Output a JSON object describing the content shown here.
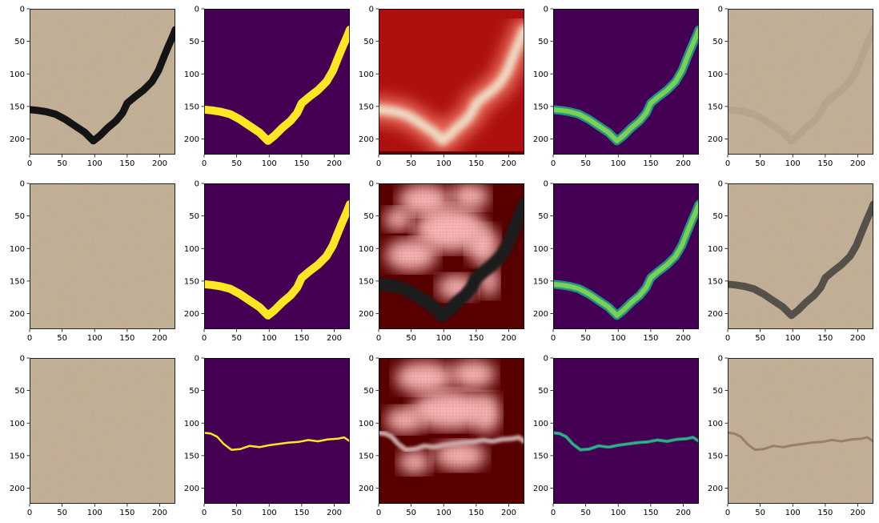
{
  "chart_data": {
    "type": "image_grid",
    "rows": 3,
    "cols": 5,
    "xticks": [
      0,
      50,
      100,
      150,
      200
    ],
    "yticks": [
      0,
      50,
      100,
      150,
      200
    ],
    "xlim": [
      0,
      224
    ],
    "ylim": [
      224,
      0
    ],
    "crack_paths": {
      "v": [
        [
          0,
          155
        ],
        [
          12,
          156
        ],
        [
          25,
          158
        ],
        [
          40,
          162
        ],
        [
          55,
          170
        ],
        [
          70,
          180
        ],
        [
          85,
          190
        ],
        [
          98,
          203
        ],
        [
          108,
          195
        ],
        [
          120,
          183
        ],
        [
          133,
          172
        ],
        [
          143,
          160
        ],
        [
          150,
          145
        ],
        [
          162,
          135
        ],
        [
          175,
          125
        ],
        [
          188,
          112
        ],
        [
          198,
          95
        ],
        [
          206,
          75
        ],
        [
          213,
          58
        ],
        [
          220,
          42
        ],
        [
          224,
          32
        ]
      ],
      "thin": [
        [
          0,
          115
        ],
        [
          10,
          116
        ],
        [
          20,
          121
        ],
        [
          30,
          132
        ],
        [
          42,
          141
        ],
        [
          55,
          140
        ],
        [
          70,
          135
        ],
        [
          85,
          137
        ],
        [
          100,
          134
        ],
        [
          115,
          132
        ],
        [
          130,
          130
        ],
        [
          145,
          129
        ],
        [
          160,
          126
        ],
        [
          175,
          128
        ],
        [
          190,
          125
        ],
        [
          205,
          124
        ],
        [
          215,
          122
        ],
        [
          224,
          128
        ]
      ]
    },
    "panels": [
      {
        "row": 0,
        "col": 0,
        "kind": "photo",
        "crack": "v",
        "strength": 1.0,
        "crack_color": "#141414"
      },
      {
        "row": 0,
        "col": 1,
        "kind": "mask",
        "crack": "v"
      },
      {
        "row": 0,
        "col": 2,
        "kind": "heatmap",
        "variant": "high",
        "crack": "v"
      },
      {
        "row": 0,
        "col": 3,
        "kind": "viridis",
        "crack": "v"
      },
      {
        "row": 0,
        "col": 4,
        "kind": "photo",
        "crack": "v",
        "strength": 0.45,
        "crack_color": "#a89a88"
      },
      {
        "row": 1,
        "col": 0,
        "kind": "photo",
        "crack": "none",
        "strength": 0,
        "crack_color": "#141414"
      },
      {
        "row": 1,
        "col": 1,
        "kind": "mask",
        "crack": "v"
      },
      {
        "row": 1,
        "col": 2,
        "kind": "heatmap",
        "variant": "blotchy",
        "crack": "v",
        "crack_color": "#1a1a1a"
      },
      {
        "row": 1,
        "col": 3,
        "kind": "viridis",
        "crack": "v"
      },
      {
        "row": 1,
        "col": 4,
        "kind": "photo",
        "crack": "v",
        "strength": 0.8,
        "crack_color": "#3a3a36"
      },
      {
        "row": 2,
        "col": 0,
        "kind": "photo",
        "crack": "none",
        "strength": 0,
        "crack_color": "#141414"
      },
      {
        "row": 2,
        "col": 1,
        "kind": "mask",
        "crack": "thin"
      },
      {
        "row": 2,
        "col": 2,
        "kind": "heatmap",
        "variant": "blotchy2",
        "crack": "thin",
        "crack_color": "#c9a8a8"
      },
      {
        "row": 2,
        "col": 3,
        "kind": "viridis",
        "crack": "thin"
      },
      {
        "row": 2,
        "col": 4,
        "kind": "photo",
        "crack": "thin",
        "strength": 0.55,
        "crack_color": "#7a5a48"
      }
    ],
    "colors": {
      "stone": "#cdb89b",
      "mask_bg": "#440154",
      "mask_fg": "#fde725",
      "viridis_mid": "#21918c",
      "viridis_hi": "#7ad151",
      "heat_dark": "#5a0000",
      "heat_red": "#b01010",
      "heat_pink": "#f7b2b2"
    }
  }
}
